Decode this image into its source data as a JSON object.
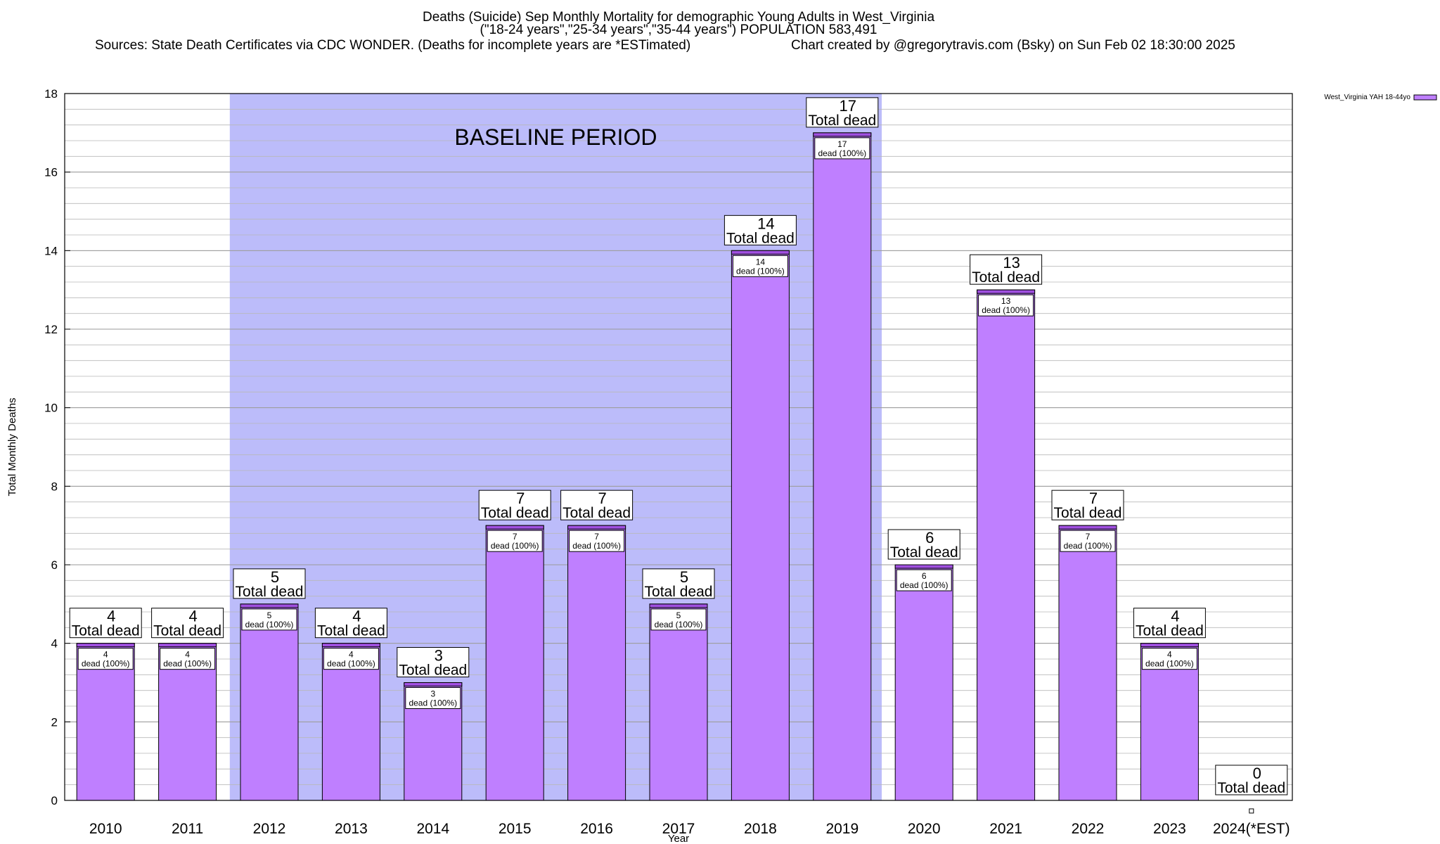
{
  "titles": {
    "line1": "Deaths (Suicide) Sep Monthly Mortality for demographic Young Adults in West_Virginia",
    "line2": "(\"18-24 years\",\"25-34 years\",\"35-44 years\") POPULATION 583,491",
    "line3": "Sources: State Death Certificates via CDC WONDER. (Deaths for incomplete years are *ESTimated)",
    "line4": "Chart created by @gregorytravis.com (Bsky) on Sun Feb 02 18:30:00 2025"
  },
  "chart_data": {
    "type": "bar",
    "categories": [
      "2010",
      "2011",
      "2012",
      "2013",
      "2014",
      "2015",
      "2016",
      "2017",
      "2018",
      "2019",
      "2020",
      "2021",
      "2022",
      "2023",
      "2024(*EST)"
    ],
    "series": [
      {
        "name": "West_Virginia YAH 18-44yo",
        "values": [
          4,
          4,
          5,
          4,
          3,
          7,
          7,
          5,
          14,
          17,
          6,
          13,
          7,
          4,
          0
        ]
      }
    ],
    "top_labels": [
      "4",
      "4",
      "5",
      "4",
      "3",
      "7",
      "7",
      "5",
      "14",
      "17",
      "6",
      "13",
      "7",
      "4",
      "0"
    ],
    "top_label_suffix": "Total dead",
    "inner_labels": [
      "4",
      "4",
      "5",
      "4",
      "3",
      "7",
      "7",
      "5",
      "14",
      "17",
      "6",
      "13",
      "7",
      "4",
      ""
    ],
    "inner_label_suffix": "dead (100%)",
    "xlabel": "Year",
    "ylabel": "Total Monthly Deaths",
    "ylim": [
      0,
      18
    ],
    "yticks": [
      0,
      2,
      4,
      6,
      8,
      10,
      12,
      14,
      16,
      18
    ],
    "grid": true,
    "legend_position": "top-right",
    "baseline_period": {
      "label": "BASELINE PERIOD",
      "from": "2012",
      "to": "2019"
    },
    "colors": {
      "bar": "#bf7fff",
      "bar_top": "#a050e0",
      "baseline_shade": "#bcbcfa"
    }
  }
}
